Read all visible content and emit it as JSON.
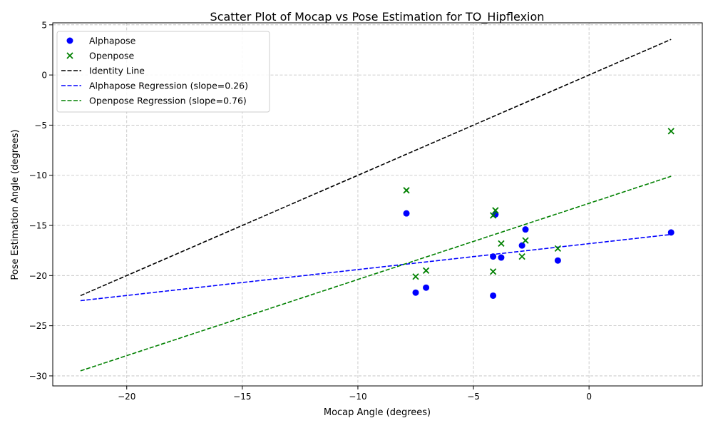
{
  "chart_data": {
    "type": "scatter",
    "title": "Scatter Plot of Mocap vs Pose Estimation for TO_Hipflexion",
    "xlabel": "Mocap Angle (degrees)",
    "ylabel": "Pose Estimation Angle (degrees)",
    "xlim": [
      -23.2,
      4.9
    ],
    "ylim": [
      -31.0,
      5.2
    ],
    "xticks": [
      -20,
      -15,
      -10,
      -5,
      0
    ],
    "yticks": [
      -30,
      -25,
      -20,
      -15,
      -10,
      -5,
      0,
      5
    ],
    "grid": true,
    "legend_position": "top-left",
    "series": [
      {
        "name": "Alphapose",
        "kind": "points",
        "marker": "circle",
        "color": "#0000ff",
        "points": [
          [
            -7.9,
            -13.8
          ],
          [
            -7.5,
            -21.7
          ],
          [
            -7.05,
            -21.2
          ],
          [
            -4.15,
            -18.1
          ],
          [
            -4.15,
            -22.0
          ],
          [
            -4.05,
            -13.9
          ],
          [
            -3.8,
            -18.2
          ],
          [
            -2.9,
            -17.0
          ],
          [
            -2.75,
            -15.4
          ],
          [
            -1.35,
            -18.5
          ],
          [
            3.55,
            -15.7
          ]
        ]
      },
      {
        "name": "Openpose",
        "kind": "points",
        "marker": "x",
        "color": "#008000",
        "points": [
          [
            -7.9,
            -11.5
          ],
          [
            -7.5,
            -20.1
          ],
          [
            -7.05,
            -19.5
          ],
          [
            -4.15,
            -19.6
          ],
          [
            -4.15,
            -14.0
          ],
          [
            -4.05,
            -13.5
          ],
          [
            -3.8,
            -16.8
          ],
          [
            -2.9,
            -18.1
          ],
          [
            -2.75,
            -16.5
          ],
          [
            -1.35,
            -17.3
          ],
          [
            3.55,
            -5.6
          ]
        ]
      },
      {
        "name": "Identity Line",
        "kind": "line",
        "color": "#000000",
        "points": [
          [
            -22.0,
            -22.0
          ],
          [
            3.55,
            3.55
          ]
        ]
      },
      {
        "name": "Alphapose Regression (slope=0.26)",
        "kind": "line",
        "color": "#0000ff",
        "points": [
          [
            -22.0,
            -22.5
          ],
          [
            3.55,
            -15.9
          ]
        ]
      },
      {
        "name": "Openpose Regression (slope=0.76)",
        "kind": "line",
        "color": "#008000",
        "points": [
          [
            -22.0,
            -29.5
          ],
          [
            3.55,
            -10.1
          ]
        ]
      }
    ]
  }
}
